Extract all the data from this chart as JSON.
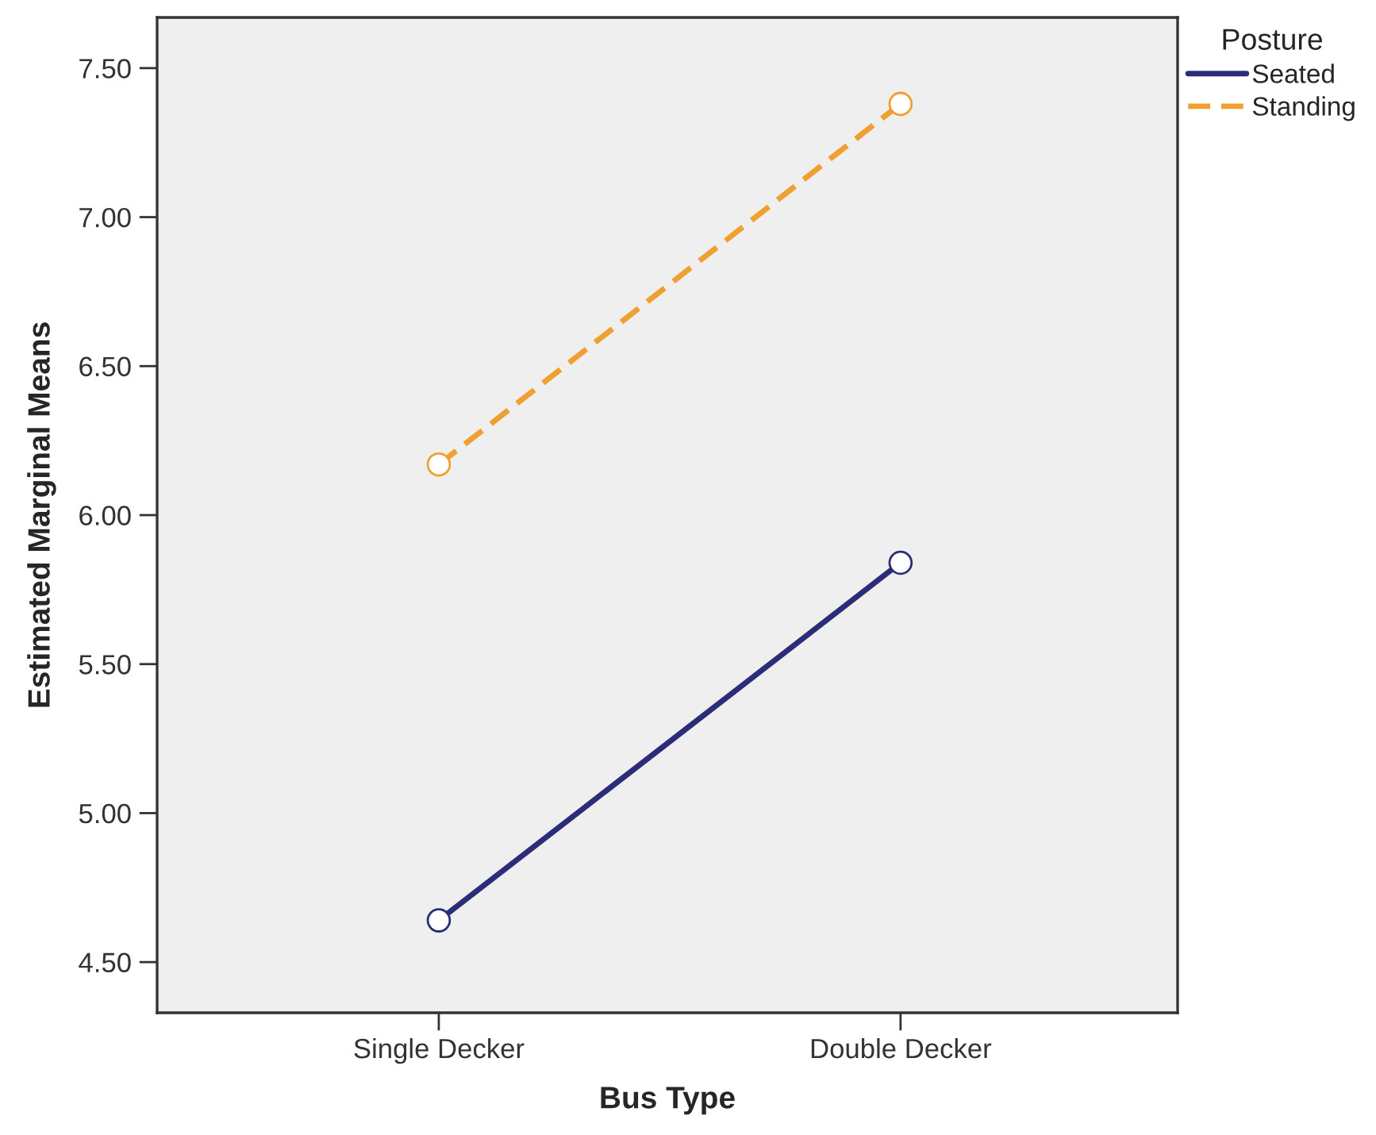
{
  "chart_data": {
    "type": "line",
    "xlabel": "Bus Type",
    "ylabel": "Estimated Marginal Means",
    "legend_title": "Posture",
    "categories": [
      "Single Decker",
      "Double Decker"
    ],
    "series": [
      {
        "name": "Seated",
        "color": "#2b2d78",
        "values": [
          4.64,
          5.84
        ],
        "line_style": "solid"
      },
      {
        "name": "Standing",
        "color": "#f0a030",
        "values": [
          6.17,
          7.38
        ],
        "line_style": "dashed"
      }
    ],
    "ylim": [
      4.33,
      7.67
    ],
    "yticks": [
      {
        "value": 4.5,
        "label": "4.50"
      },
      {
        "value": 5.0,
        "label": "5.00"
      },
      {
        "value": 5.5,
        "label": "5.50"
      },
      {
        "value": 6.0,
        "label": "6.00"
      },
      {
        "value": 6.5,
        "label": "6.50"
      },
      {
        "value": 7.0,
        "label": "7.00"
      },
      {
        "value": 7.5,
        "label": "7.50"
      }
    ],
    "marker": "circle",
    "grid": false,
    "legend": "top right"
  }
}
